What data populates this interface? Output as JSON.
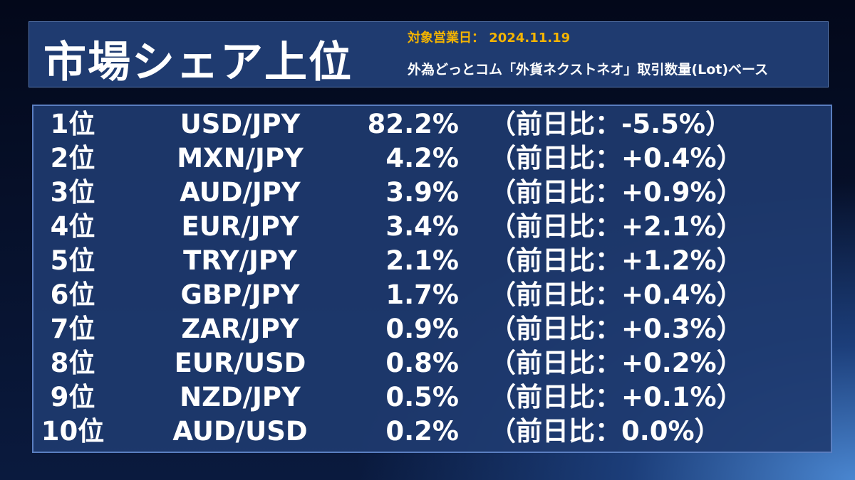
{
  "header": {
    "title": "市場シェア上位",
    "date": "対象営業日： 2024.11.19",
    "subtitle": "外為どっとコム「外貨ネクストネオ」取引数量(Lot)ベース"
  },
  "table": {
    "rows": [
      [
        "1位",
        "USD/JPY",
        "82.2%",
        "（前日比：-5.5%）"
      ],
      [
        "2位",
        "MXN/JPY",
        "4.2%",
        "（前日比：+0.4%）"
      ],
      [
        "3位",
        "AUD/JPY",
        "3.9%",
        "（前日比：+0.9%）"
      ],
      [
        "4位",
        "EUR/JPY",
        "3.4%",
        "（前日比：+2.1%）"
      ],
      [
        "5位",
        "TRY/JPY",
        "2.1%",
        "（前日比：+1.2%）"
      ],
      [
        "6位",
        "GBP/JPY",
        "1.7%",
        "（前日比：+0.4%）"
      ],
      [
        "7位",
        "ZAR/JPY",
        "0.9%",
        "（前日比：+0.3%）"
      ],
      [
        "8位",
        "EUR/USD",
        "0.8%",
        "（前日比：+0.2%）"
      ],
      [
        "9位",
        "NZD/JPY",
        "0.5%",
        "（前日比：+0.1%）"
      ],
      [
        "10位",
        "AUD/USD",
        "0.2%",
        "（前日比：0.0%）"
      ]
    ]
  }
}
